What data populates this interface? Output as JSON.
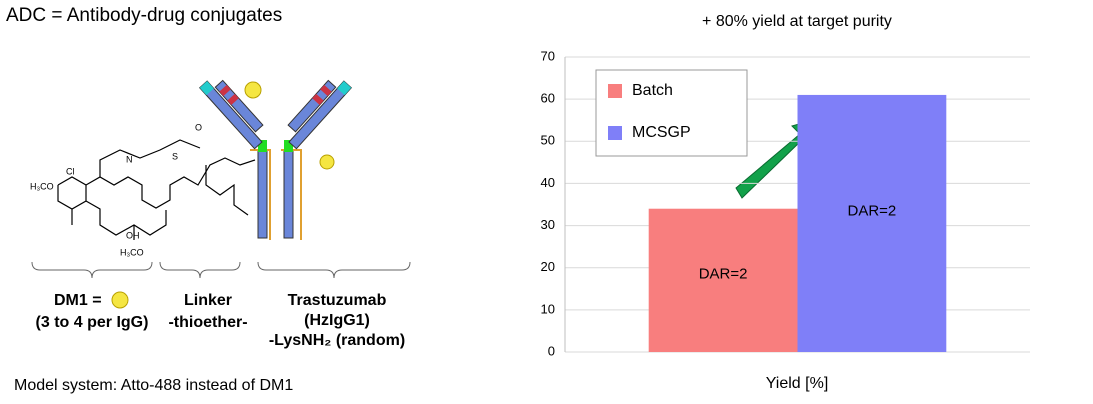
{
  "header": {
    "title": "ADC = Antibody-drug conjugates",
    "footnote": "Model system: Atto-488 instead of DM1"
  },
  "diagram": {
    "dm1": "DM1 =",
    "dm1_count": "(3 to 4 per IgG)",
    "linker": "Linker",
    "linker_type": "-thioether-",
    "antibody": "Trastuzumab",
    "antibody_class": "(HzIgG1)",
    "antibody_site": "-LysNH₂ (random)",
    "atoms": [
      "H₃CO",
      "Cl",
      "OH",
      "H₃CO",
      "N",
      "O",
      "S"
    ]
  },
  "chart_data": {
    "type": "bar",
    "title": "+ 80% yield at target purity",
    "x_label": "Yield [%]",
    "categories": [
      null
    ],
    "series": [
      {
        "name": "Batch",
        "color": "#f87e7e",
        "values": [
          34
        ],
        "annotation": "DAR=2"
      },
      {
        "name": "MCSGP",
        "color": "#7f7ff8",
        "values": [
          61
        ],
        "annotation": "DAR=2"
      }
    ],
    "ylim": [
      0,
      70
    ],
    "yticks": [
      0,
      10,
      20,
      30,
      40,
      50,
      60,
      70
    ],
    "grid": true,
    "legend": "upper left"
  }
}
